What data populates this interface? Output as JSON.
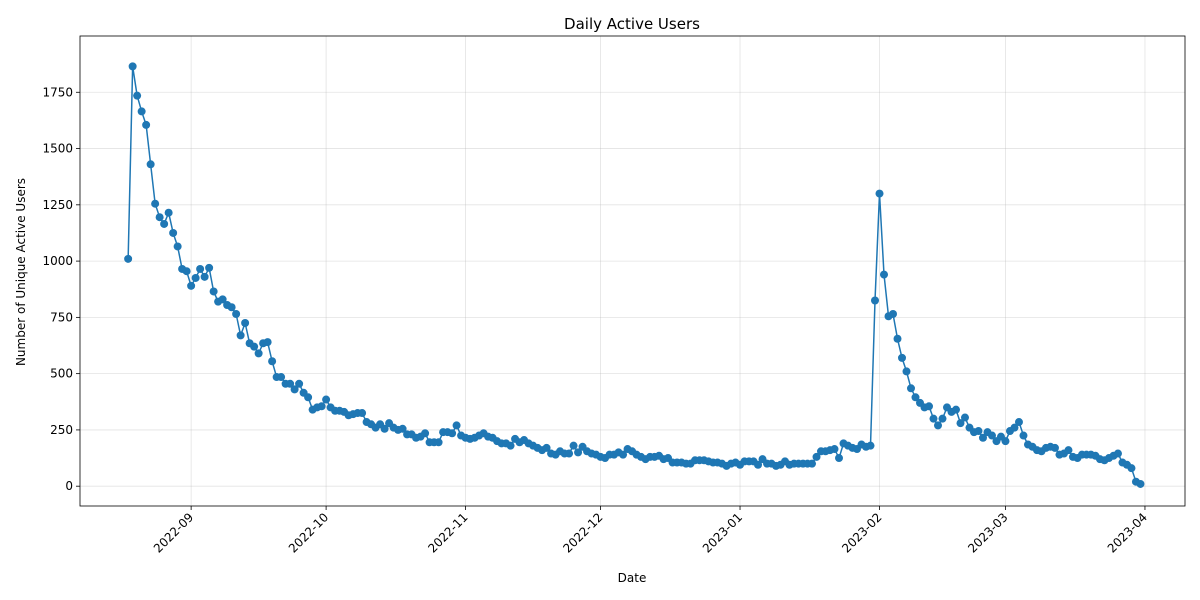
{
  "chart_data": {
    "type": "line",
    "title": "Daily Active Users",
    "x_label": "Date",
    "y_label": "Number of Unique Active Users",
    "x": [
      -14,
      -13,
      -12,
      -11,
      -10,
      -9,
      -8,
      -7,
      -6,
      -5,
      -4,
      -3,
      -2,
      -1,
      0,
      1,
      2,
      3,
      4,
      5,
      6,
      7,
      8,
      9,
      10,
      11,
      12,
      13,
      14,
      15,
      16,
      17,
      18,
      19,
      20,
      21,
      22,
      23,
      24,
      25,
      26,
      27,
      28,
      29,
      30,
      31,
      32,
      33,
      34,
      35,
      36,
      37,
      38,
      39,
      40,
      41,
      42,
      43,
      44,
      45,
      46,
      47,
      48,
      49,
      50,
      51,
      52,
      53,
      54,
      55,
      56,
      57,
      58,
      59,
      60,
      61,
      62,
      63,
      64,
      65,
      66,
      67,
      68,
      69,
      70,
      71,
      72,
      73,
      74,
      75,
      76,
      77,
      78,
      79,
      80,
      81,
      82,
      83,
      84,
      85,
      86,
      87,
      88,
      89,
      90,
      91,
      92,
      93,
      94,
      95,
      96,
      97,
      98,
      99,
      100,
      101,
      102,
      103,
      104,
      105,
      106,
      107,
      108,
      109,
      110,
      111,
      112,
      113,
      114,
      115,
      116,
      117,
      118,
      119,
      120,
      121,
      122,
      123,
      124,
      125,
      126,
      127,
      128,
      129,
      130,
      131,
      132,
      133,
      134,
      135,
      136,
      137,
      138,
      139,
      140,
      141,
      142,
      143,
      144,
      145,
      146,
      147,
      148,
      149,
      150,
      151,
      152,
      153,
      154,
      155,
      156,
      157,
      158,
      159,
      160,
      161,
      162,
      163,
      164,
      165,
      166,
      167,
      168,
      169,
      170,
      171,
      172,
      173,
      174,
      175,
      176,
      177,
      178,
      179,
      180,
      181,
      182,
      183,
      184,
      185,
      186,
      187,
      188,
      189,
      190,
      191,
      192,
      193,
      194,
      195,
      196,
      197,
      198,
      199,
      200,
      201,
      202,
      203,
      204,
      205,
      206,
      207,
      208,
      209,
      210,
      211
    ],
    "series": [
      {
        "name": "Daily Active Users",
        "color": "#1f77b4",
        "values": [
          1010,
          1865,
          1735,
          1665,
          1605,
          1430,
          1255,
          1195,
          1165,
          1215,
          1125,
          1065,
          965,
          955,
          890,
          925,
          965,
          930,
          970,
          865,
          820,
          830,
          805,
          795,
          765,
          670,
          725,
          635,
          620,
          590,
          635,
          640,
          555,
          485,
          485,
          455,
          455,
          430,
          455,
          415,
          395,
          340,
          350,
          355,
          385,
          350,
          335,
          335,
          330,
          315,
          320,
          325,
          325,
          285,
          275,
          260,
          275,
          255,
          280,
          260,
          250,
          255,
          230,
          230,
          215,
          220,
          235,
          195,
          195,
          195,
          240,
          240,
          235,
          270,
          225,
          215,
          210,
          215,
          225,
          235,
          220,
          215,
          200,
          190,
          190,
          180,
          210,
          195,
          205,
          190,
          180,
          170,
          160,
          170,
          145,
          140,
          155,
          145,
          145,
          180,
          150,
          175,
          155,
          145,
          140,
          130,
          125,
          140,
          140,
          150,
          140,
          165,
          155,
          140,
          130,
          120,
          130,
          130,
          135,
          120,
          125,
          105,
          105,
          105,
          100,
          100,
          115,
          115,
          115,
          110,
          105,
          105,
          100,
          90,
          100,
          105,
          95,
          110,
          110,
          110,
          95,
          120,
          100,
          100,
          90,
          95,
          110,
          95,
          100,
          100,
          100,
          100,
          100,
          130,
          155,
          155,
          160,
          165,
          125,
          190,
          180,
          170,
          165,
          185,
          175,
          180,
          825,
          1300,
          940,
          755,
          765,
          655,
          570,
          510,
          435,
          395,
          370,
          350,
          355,
          300,
          270,
          300,
          350,
          330,
          340,
          280,
          305,
          260,
          240,
          245,
          215,
          240,
          225,
          200,
          220,
          200,
          245,
          260,
          285,
          225,
          185,
          175,
          160,
          155,
          170,
          175,
          170,
          140,
          145,
          160,
          130,
          125,
          140,
          140,
          140,
          135,
          120,
          115,
          125,
          135,
          145,
          105,
          95,
          80,
          20,
          10
        ]
      }
    ],
    "xlim": [
      -24.7,
      220.9
    ],
    "ylim": [
      -88,
      2000
    ],
    "xticks": [
      {
        "value": 0,
        "label": "2022-09"
      },
      {
        "value": 30,
        "label": "2022-10"
      },
      {
        "value": 61,
        "label": "2022-11"
      },
      {
        "value": 91,
        "label": "2022-12"
      },
      {
        "value": 122,
        "label": "2023-01"
      },
      {
        "value": 153,
        "label": "2023-02"
      },
      {
        "value": 181,
        "label": "2023-03"
      },
      {
        "value": 212,
        "label": "2023-04"
      }
    ],
    "yticks": [
      0,
      250,
      500,
      750,
      1000,
      1250,
      1500,
      1750
    ],
    "grid": true
  }
}
